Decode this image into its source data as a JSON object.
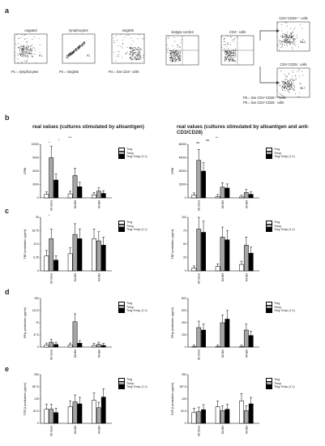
{
  "panels": {
    "a": "a",
    "b": "b",
    "c": "c",
    "d": "d",
    "e": "e"
  },
  "flow": {
    "plots": [
      {
        "title": "ungated",
        "caption": "P1 = lymphocytes",
        "gate": "P1"
      },
      {
        "title": "lymphocytes",
        "caption": "P2 = singlets",
        "gate": "P2"
      },
      {
        "title": "singlets",
        "caption": "P4 = live CD4⁺ cells",
        "gate": "P4"
      },
      {
        "title": "isotype control",
        "caption": "",
        "gate": ""
      },
      {
        "title": "CD4⁺ cells",
        "caption": "",
        "gate": ""
      }
    ],
    "right_top_title": "CD4⁺CD25⁺⁺ cells",
    "right_bottom_title": "CD4⁺CD25⁻ cells",
    "right_top_value": "98.3",
    "right_bottom_value": "98.7",
    "p5": "P5 = live CD4⁺CD25⁺⁺ cells",
    "p6": "P6 = live CD4⁺CD25⁻ cells"
  },
  "headings": {
    "left": "real values (cultures stimulated by alloantigen)",
    "right": "real values (cultures stimulated by alloantigen and anti-CD3/CD28)"
  },
  "legend": {
    "treg": "Treg",
    "tresp": "Tresp",
    "mix": "Treg:Tresp (1:1)"
  },
  "colors": {
    "treg": "#ffffff",
    "tresp": "#a6a6a6",
    "mix": "#000000"
  },
  "chart_data": [
    {
      "id": "b-left",
      "type": "bar",
      "ylabel": "CPM",
      "categories": [
        "HD blood",
        "OA BM",
        "RA BM"
      ],
      "series": [
        {
          "name": "Treg",
          "values": [
            800,
            900,
            700
          ]
        },
        {
          "name": "Tresp",
          "values": [
            9000,
            5000,
            1500
          ]
        },
        {
          "name": "Treg:Tresp (1:1)",
          "values": [
            4000,
            2500,
            1000
          ]
        }
      ],
      "ylim": [
        0,
        12000
      ],
      "annotations": [
        "*",
        "*",
        "***"
      ]
    },
    {
      "id": "b-right",
      "type": "bar",
      "ylabel": "CPM",
      "categories": [
        "HD blood",
        "OA BM",
        "RA BM"
      ],
      "series": [
        {
          "name": "Treg",
          "values": [
            3000,
            1500,
            1000
          ]
        },
        {
          "name": "Tresp",
          "values": [
            42000,
            12000,
            6000
          ]
        },
        {
          "name": "Treg:Tresp (1:1)",
          "values": [
            30000,
            11000,
            4000
          ]
        }
      ],
      "ylim": [
        0,
        60000
      ],
      "annotations": [
        "ns",
        "ns",
        "**"
      ]
    },
    {
      "id": "c-left",
      "type": "bar",
      "ylabel": "TNF production (pg/ml)",
      "categories": [
        "HD blood",
        "OA BM",
        "RA BM"
      ],
      "series": [
        {
          "name": "Treg",
          "values": [
            7,
            8,
            15
          ]
        },
        {
          "name": "Tresp",
          "values": [
            15,
            17,
            14
          ]
        },
        {
          "name": "Treg:Tresp (1:1)",
          "values": [
            5,
            15,
            12
          ]
        }
      ],
      "ylim": [
        0,
        25
      ],
      "annotations": [
        "*"
      ]
    },
    {
      "id": "c-right",
      "type": "bar",
      "ylabel": "TNF production (pg/ml)",
      "categories": [
        "HD blood",
        "OA BM",
        "RA BM"
      ],
      "series": [
        {
          "name": "Treg",
          "values": [
            5,
            8,
            12
          ]
        },
        {
          "name": "Tresp",
          "values": [
            78,
            63,
            48
          ]
        },
        {
          "name": "Treg:Tresp (1:1)",
          "values": [
            72,
            58,
            33
          ]
        }
      ],
      "ylim": [
        0,
        100
      ],
      "annotations": []
    },
    {
      "id": "d-left",
      "type": "bar",
      "ylabel": "IFNγ production (pg/ml)",
      "categories": [
        "HD blood",
        "OA BM",
        "RA BM"
      ],
      "series": [
        {
          "name": "Treg",
          "values": [
            6,
            6,
            5
          ]
        },
        {
          "name": "Tresp",
          "values": [
            15,
            78,
            8
          ]
        },
        {
          "name": "Treg:Tresp (1:1)",
          "values": [
            8,
            12,
            5
          ]
        }
      ],
      "ylim": [
        0,
        150
      ],
      "annotations": []
    },
    {
      "id": "d-right",
      "type": "bar",
      "ylabel": "IFNγ production (pg/ml)",
      "categories": [
        "HD blood",
        "OA BM",
        "RA BM"
      ],
      "series": [
        {
          "name": "Treg",
          "values": [
            5,
            8,
            6
          ]
        },
        {
          "name": "Tresp",
          "values": [
            320,
            400,
            280
          ]
        },
        {
          "name": "Treg:Tresp (1:1)",
          "values": [
            280,
            460,
            190
          ]
        }
      ],
      "ylim": [
        0,
        800
      ],
      "annotations": []
    },
    {
      "id": "e-left",
      "type": "bar",
      "ylabel": "TGF-β production (pg/ml)",
      "categories": [
        "HD blood",
        "OA BM",
        "RA BM"
      ],
      "series": [
        {
          "name": "Treg",
          "values": [
            72,
            85,
            118
          ]
        },
        {
          "name": "Tresp",
          "values": [
            72,
            110,
            80
          ]
        },
        {
          "name": "Treg:Tresp (1:1)",
          "values": [
            55,
            100,
            135
          ]
        }
      ],
      "ylim": [
        0,
        250
      ],
      "annotations": []
    },
    {
      "id": "e-right",
      "type": "bar",
      "ylabel": "TGF-β production (pg/ml)",
      "categories": [
        "HD blood",
        "OA BM",
        "RA BM"
      ],
      "series": [
        {
          "name": "Treg",
          "values": [
            55,
            85,
            115
          ]
        },
        {
          "name": "Tresp",
          "values": [
            60,
            65,
            65
          ]
        },
        {
          "name": "Treg:Tresp (1:1)",
          "values": [
            70,
            72,
            100
          ]
        }
      ],
      "ylim": [
        0,
        250
      ],
      "annotations": []
    }
  ]
}
